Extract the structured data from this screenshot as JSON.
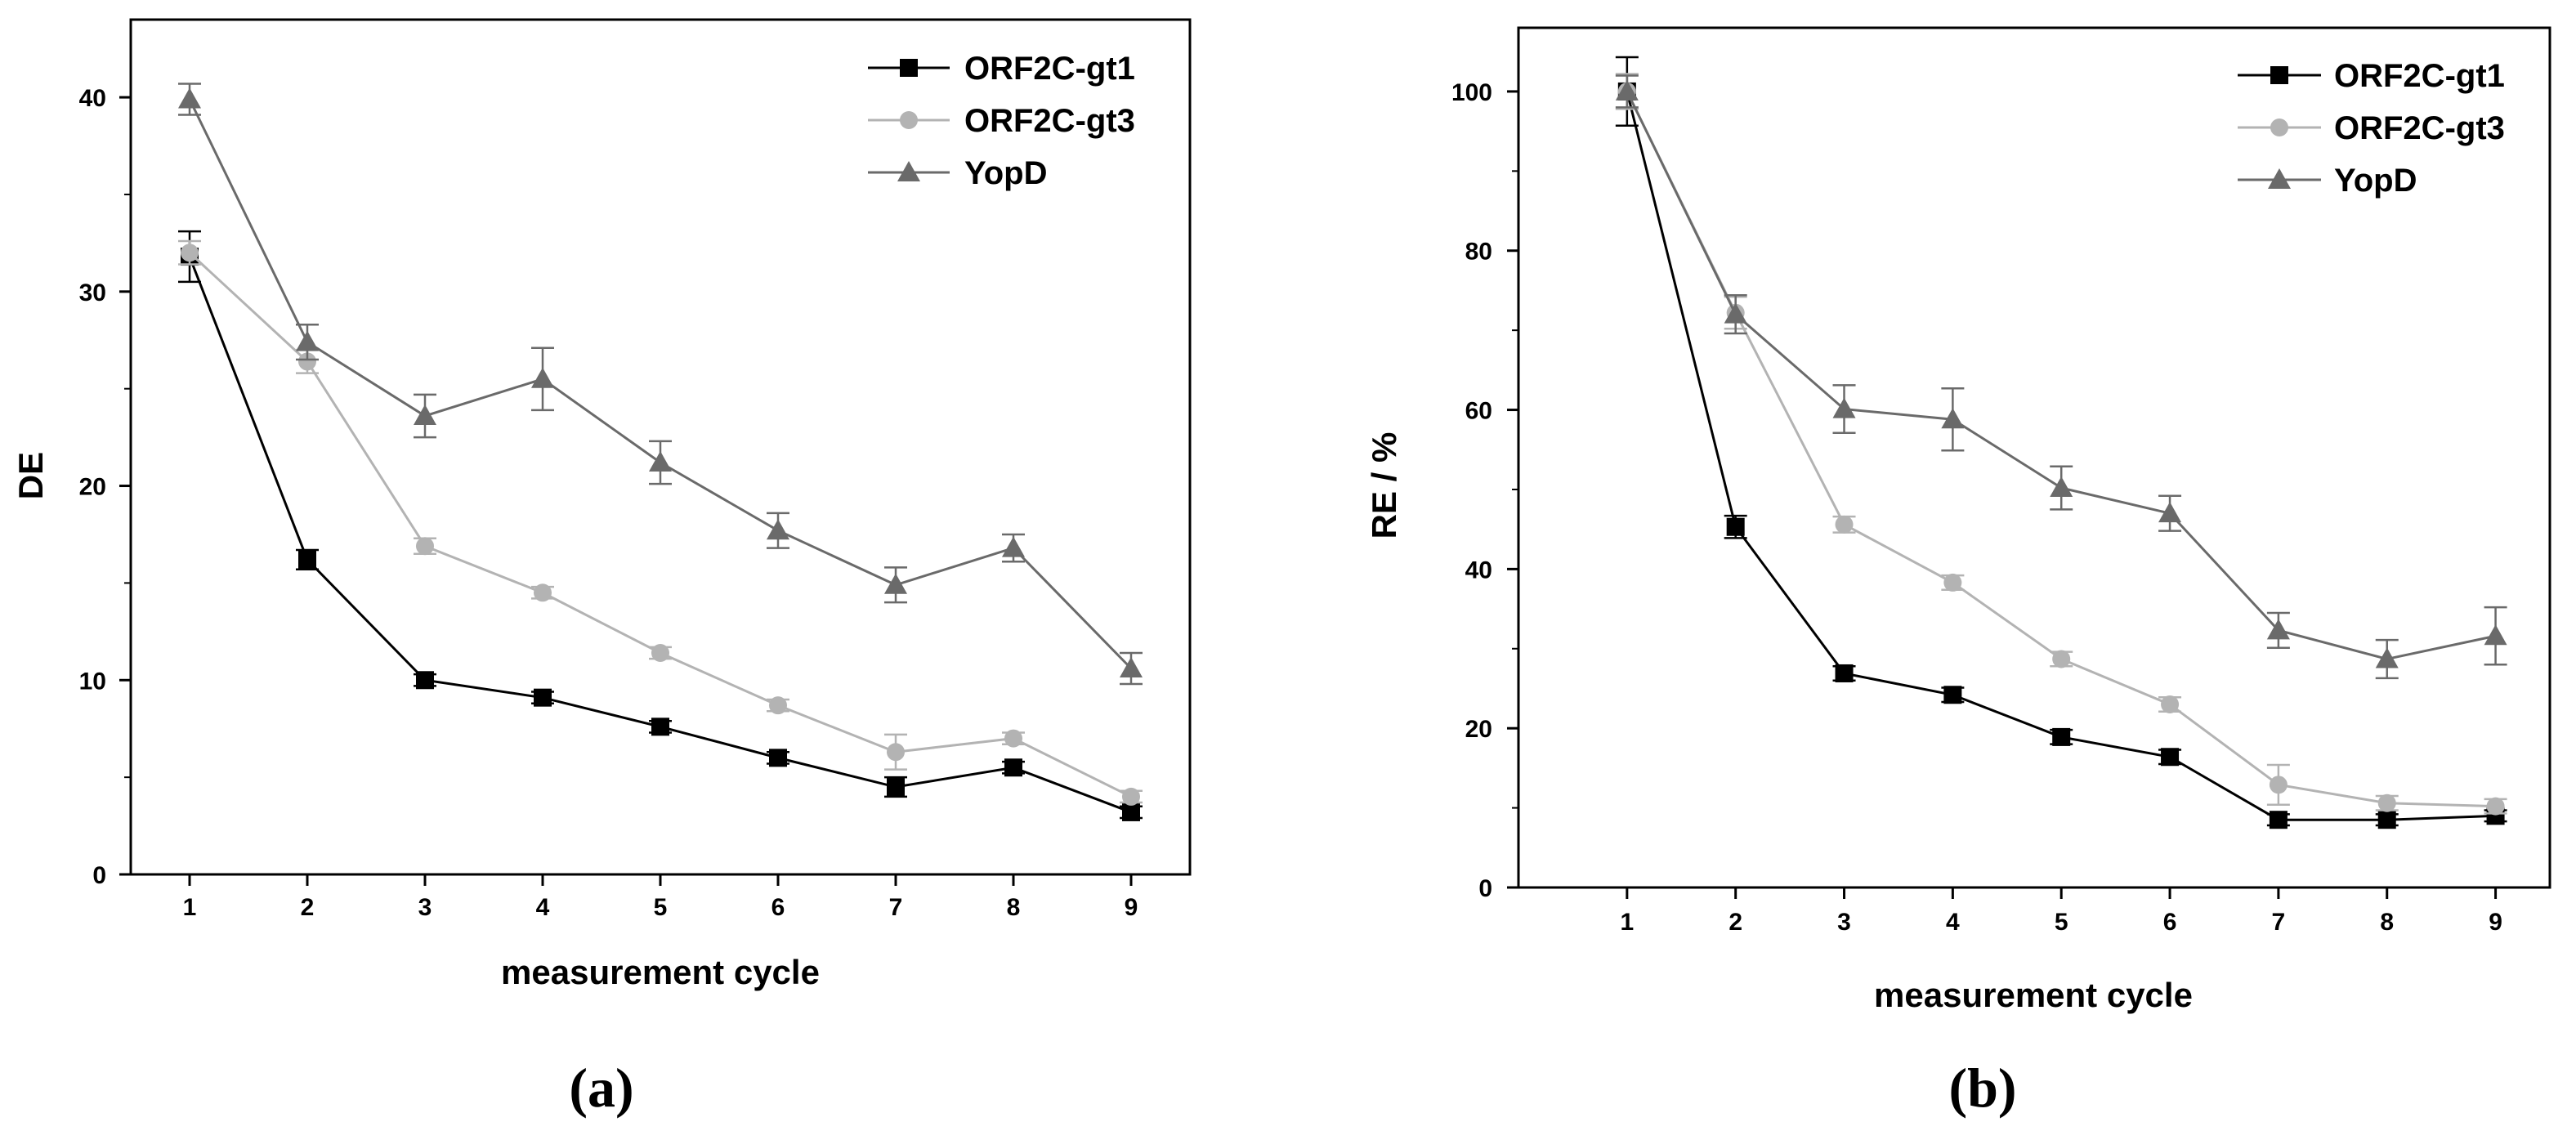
{
  "chart_data": [
    {
      "type": "line",
      "panel_label": "(a)",
      "xlabel": "measurement cycle",
      "ylabel": "DE",
      "x": [
        1,
        2,
        3,
        4,
        5,
        6,
        7,
        8,
        9
      ],
      "xlim": [
        0.5,
        9.5
      ],
      "ylim": [
        0,
        44
      ],
      "yticks": [
        0,
        10,
        20,
        30,
        40
      ],
      "legend_position": "top-right",
      "series": [
        {
          "name": "ORF2C-gt1",
          "marker": "square",
          "color": "#000000",
          "values": [
            31.8,
            16.2,
            10.0,
            9.1,
            7.6,
            6.0,
            4.5,
            5.5,
            3.2
          ],
          "errors": [
            1.3,
            0.5,
            0.3,
            0.3,
            0.3,
            0.3,
            0.5,
            0.3,
            0.3
          ]
        },
        {
          "name": "ORF2C-gt3",
          "marker": "circle",
          "color": "#b3b3b3",
          "values": [
            32.0,
            26.4,
            16.9,
            14.5,
            11.4,
            8.7,
            6.3,
            7.0,
            4.0
          ],
          "errors": [
            0.6,
            0.6,
            0.4,
            0.3,
            0.3,
            0.3,
            0.9,
            0.3,
            0.3
          ]
        },
        {
          "name": "YopD",
          "marker": "triangle",
          "color": "#6a6a6a",
          "values": [
            39.9,
            27.4,
            23.6,
            25.5,
            21.2,
            17.7,
            14.9,
            16.8,
            10.6
          ],
          "errors": [
            0.8,
            0.9,
            1.1,
            1.6,
            1.1,
            0.9,
            0.9,
            0.7,
            0.8
          ]
        }
      ]
    },
    {
      "type": "line",
      "panel_label": "(b)",
      "xlabel": "measurement cycle",
      "ylabel": "RE / %",
      "x": [
        1,
        2,
        3,
        4,
        5,
        6,
        7,
        8,
        9
      ],
      "xlim": [
        0,
        9.5
      ],
      "ylim": [
        0,
        108
      ],
      "yticks": [
        0,
        20,
        40,
        60,
        80,
        100
      ],
      "legend_position": "top-right",
      "series": [
        {
          "name": "ORF2C-gt1",
          "marker": "square",
          "color": "#000000",
          "values": [
            100,
            45.3,
            26.9,
            24.2,
            18.9,
            16.4,
            8.5,
            8.5,
            9.0
          ],
          "errors": [
            4.3,
            1.4,
            0.9,
            0.9,
            0.9,
            0.9,
            0.7,
            0.7,
            0.7
          ]
        },
        {
          "name": "ORF2C-gt3",
          "marker": "circle",
          "color": "#b3b3b3",
          "values": [
            100,
            72.2,
            45.6,
            38.3,
            28.7,
            23.0,
            12.9,
            10.6,
            10.2
          ],
          "errors": [
            2.2,
            2.0,
            1.0,
            0.9,
            0.9,
            0.9,
            2.5,
            0.9,
            0.9
          ]
        },
        {
          "name": "YopD",
          "marker": "triangle",
          "color": "#6a6a6a",
          "values": [
            100,
            72.0,
            60.1,
            58.8,
            50.2,
            47.0,
            32.3,
            28.7,
            31.6
          ],
          "errors": [
            2.0,
            2.4,
            3.0,
            3.9,
            2.7,
            2.2,
            2.2,
            2.4,
            3.6
          ]
        }
      ]
    }
  ]
}
